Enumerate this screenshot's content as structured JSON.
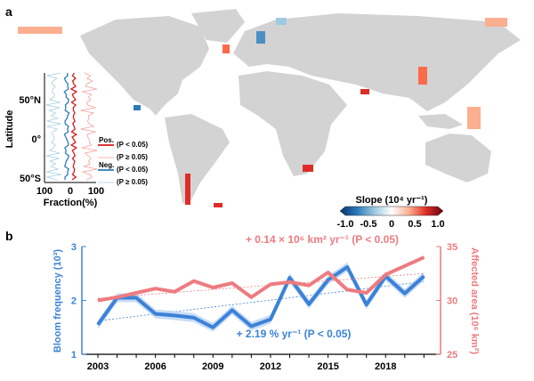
{
  "panel_a": {
    "label": "a",
    "colorbar": {
      "title": "Slope (10⁴ yr⁻¹)",
      "ticks": [
        "-1.0",
        "-0.5",
        "0",
        "0.5",
        "1.0"
      ],
      "colors": [
        "#08306b",
        "#2b7bba",
        "#9ecae1",
        "#ffffff",
        "#fcae91",
        "#de2d26",
        "#67000d"
      ]
    },
    "inset": {
      "ylabel": "Latitude",
      "xlabel": "Fraction(%)",
      "yticks": [
        "50°N",
        "0°",
        "50°S"
      ],
      "xticks": [
        "100",
        "0",
        "100"
      ],
      "legend": [
        {
          "group": "Pos.",
          "label": "(P < 0.05)",
          "color": "#d7191c"
        },
        {
          "group": "",
          "label": "(P ≥ 0.05)",
          "color": "#f4a09c"
        },
        {
          "group": "Neg.",
          "label": "(P < 0.05)",
          "color": "#2c7bb6"
        },
        {
          "group": "",
          "label": "(P ≥ 0.05)",
          "color": "#a6cee3"
        }
      ]
    }
  },
  "chart_data": {
    "type": "line",
    "label": "b",
    "x": [
      2003,
      2004,
      2005,
      2006,
      2007,
      2008,
      2009,
      2010,
      2011,
      2012,
      2013,
      2014,
      2015,
      2016,
      2017,
      2018,
      2019,
      2020
    ],
    "xticks": [
      "2003",
      "2006",
      "2009",
      "2012",
      "2015",
      "2018"
    ],
    "series": [
      {
        "name": "Bloom frequency",
        "axis": "left",
        "color": "#3b82d8",
        "values": [
          1.55,
          2.05,
          2.05,
          1.75,
          1.72,
          1.68,
          1.5,
          1.82,
          1.52,
          1.65,
          2.42,
          1.93,
          2.38,
          2.62,
          1.92,
          2.45,
          2.13,
          2.45
        ],
        "trend": [
          1.62,
          2.35
        ],
        "trend_label": "+ 2.19 % yr⁻¹ (P < 0.05)"
      },
      {
        "name": "Affected area",
        "axis": "right",
        "color": "#ee7b7f",
        "values": [
          30.0,
          30.3,
          30.7,
          31.1,
          30.8,
          31.8,
          31.2,
          31.6,
          30.3,
          31.5,
          31.7,
          31.4,
          32.6,
          31.0,
          30.7,
          32.4,
          33.2,
          34.0
        ],
        "trend": [
          30.2,
          32.5
        ],
        "trend_label": "+ 0.14 × 10⁶ km² yr⁻¹ (P < 0.05)"
      }
    ],
    "ylabel_left": "Bloom frequency (10³)",
    "ylim_left": [
      1,
      3
    ],
    "yticks_left": [
      "1",
      "2",
      "3"
    ],
    "ylabel_right": "Affected area (10⁶ km²)",
    "ylim_right": [
      25,
      35
    ],
    "yticks_right": [
      "25",
      "30",
      "35"
    ]
  }
}
